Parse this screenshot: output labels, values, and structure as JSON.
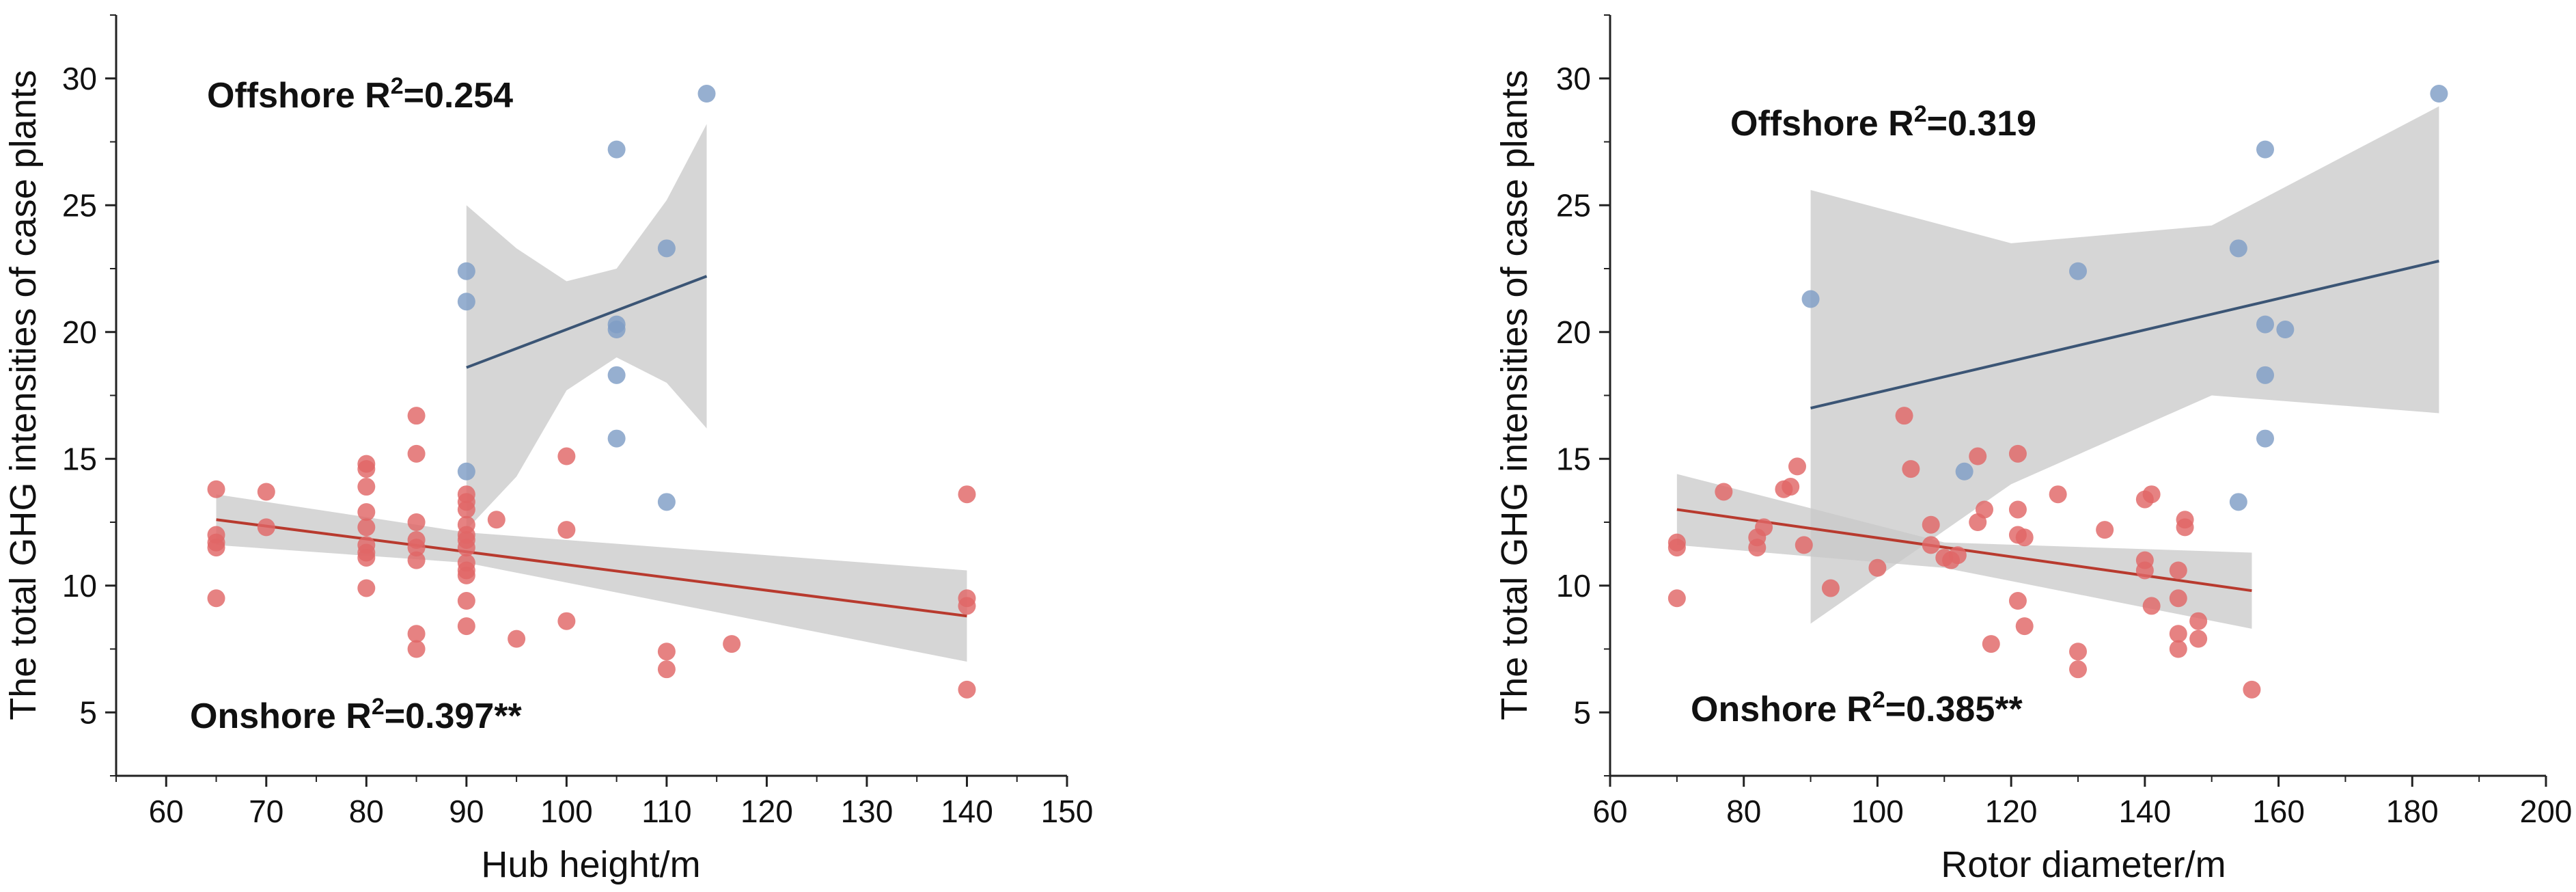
{
  "chart_data": [
    {
      "type": "scatter",
      "id": "hub",
      "xlabel": "Hub height/m",
      "ylabel": "The total GHG intensities of case plants",
      "xlim": [
        55,
        150
      ],
      "ylim": [
        2.5,
        32.5
      ],
      "xticks": [
        60,
        70,
        80,
        90,
        100,
        110,
        120,
        130,
        140,
        150
      ],
      "yticks": [
        5,
        10,
        15,
        20,
        25,
        30
      ],
      "series": [
        {
          "name": "Onshore",
          "color": "#e06666",
          "points": [
            [
              65,
              13.8
            ],
            [
              65,
              12.0
            ],
            [
              65,
              11.7
            ],
            [
              65,
              11.5
            ],
            [
              65,
              9.5
            ],
            [
              70,
              13.7
            ],
            [
              70,
              12.3
            ],
            [
              80,
              14.8
            ],
            [
              80,
              14.6
            ],
            [
              80,
              13.9
            ],
            [
              80,
              12.9
            ],
            [
              80,
              12.3
            ],
            [
              80,
              11.6
            ],
            [
              80,
              11.3
            ],
            [
              80,
              11.1
            ],
            [
              80,
              9.9
            ],
            [
              85,
              16.7
            ],
            [
              85,
              15.2
            ],
            [
              85,
              12.5
            ],
            [
              85,
              11.8
            ],
            [
              85,
              11.5
            ],
            [
              85,
              11.0
            ],
            [
              85,
              8.1
            ],
            [
              85,
              7.5
            ],
            [
              90,
              13.6
            ],
            [
              90,
              13.3
            ],
            [
              90,
              13.0
            ],
            [
              90,
              12.4
            ],
            [
              90,
              12.0
            ],
            [
              90,
              11.8
            ],
            [
              90,
              11.5
            ],
            [
              90,
              10.9
            ],
            [
              90,
              10.6
            ],
            [
              90,
              10.4
            ],
            [
              90,
              9.4
            ],
            [
              90,
              8.4
            ],
            [
              93,
              12.6
            ],
            [
              95,
              7.9
            ],
            [
              100,
              15.1
            ],
            [
              100,
              12.2
            ],
            [
              100,
              8.6
            ],
            [
              110,
              7.4
            ],
            [
              110,
              6.7
            ],
            [
              116.5,
              7.7
            ],
            [
              140,
              13.6
            ],
            [
              140,
              9.5
            ],
            [
              140,
              9.2
            ],
            [
              140,
              5.9
            ]
          ],
          "fit_x": [
            65,
            140
          ],
          "fit_y": [
            12.6,
            8.8
          ],
          "band_x": [
            65,
            90,
            140
          ],
          "band_upper": [
            13.6,
            12.1,
            10.6
          ],
          "band_lower": [
            11.6,
            10.9,
            7.0
          ],
          "annotation": {
            "prefix": "Onshore R",
            "sup": "2",
            "suffix": "=0.397**"
          }
        },
        {
          "name": "Offshore",
          "color": "#7f9dc6",
          "points": [
            [
              90,
              22.4
            ],
            [
              90,
              21.2
            ],
            [
              90,
              14.5
            ],
            [
              105,
              27.2
            ],
            [
              105,
              20.3
            ],
            [
              105,
              20.1
            ],
            [
              105,
              18.3
            ],
            [
              105,
              15.8
            ],
            [
              110,
              23.3
            ],
            [
              110,
              13.3
            ],
            [
              114,
              29.4
            ]
          ],
          "fit_x": [
            90,
            114
          ],
          "fit_y": [
            18.6,
            22.2
          ],
          "band_x": [
            90,
            95,
            100,
            105,
            110,
            114
          ],
          "band_upper": [
            25.0,
            23.3,
            22.0,
            22.5,
            25.2,
            28.2
          ],
          "band_lower": [
            12.2,
            14.3,
            17.7,
            19.0,
            18.0,
            16.2
          ],
          "annotation": {
            "prefix": "Offshore R",
            "sup": "2",
            "suffix": "=0.254"
          }
        }
      ]
    },
    {
      "type": "scatter",
      "id": "rotor",
      "xlabel": "Rotor diameter/m",
      "ylabel": "The total GHG intensities of case plants",
      "xlim": [
        60,
        200
      ],
      "ylim": [
        2.5,
        32.5
      ],
      "xticks": [
        60,
        80,
        100,
        120,
        140,
        160,
        180,
        200
      ],
      "yticks": [
        5,
        10,
        15,
        20,
        25,
        30
      ],
      "series": [
        {
          "name": "Onshore",
          "color": "#e06666",
          "points": [
            [
              70,
              11.7
            ],
            [
              70,
              11.5
            ],
            [
              70,
              9.5
            ],
            [
              77,
              13.7
            ],
            [
              82,
              11.9
            ],
            [
              82,
              11.5
            ],
            [
              83,
              12.3
            ],
            [
              86,
              13.8
            ],
            [
              87,
              13.9
            ],
            [
              88,
              14.7
            ],
            [
              89,
              11.6
            ],
            [
              93,
              9.9
            ],
            [
              100,
              10.7
            ],
            [
              104,
              16.7
            ],
            [
              105,
              14.6
            ],
            [
              108,
              12.4
            ],
            [
              108,
              11.6
            ],
            [
              110,
              11.1
            ],
            [
              111,
              11.0
            ],
            [
              112,
              11.2
            ],
            [
              115,
              15.1
            ],
            [
              115,
              12.5
            ],
            [
              116,
              13.0
            ],
            [
              117,
              7.7
            ],
            [
              121,
              15.2
            ],
            [
              121,
              13.0
            ],
            [
              121,
              12.0
            ],
            [
              121,
              9.4
            ],
            [
              122,
              11.9
            ],
            [
              122,
              8.4
            ],
            [
              127,
              13.6
            ],
            [
              130,
              7.4
            ],
            [
              130,
              6.7
            ],
            [
              134,
              12.2
            ],
            [
              140,
              13.4
            ],
            [
              140,
              11.0
            ],
            [
              140,
              10.6
            ],
            [
              141,
              13.6
            ],
            [
              141,
              9.2
            ],
            [
              145,
              10.6
            ],
            [
              145,
              9.5
            ],
            [
              145,
              8.1
            ],
            [
              145,
              7.5
            ],
            [
              146,
              12.6
            ],
            [
              146,
              12.3
            ],
            [
              148,
              8.6
            ],
            [
              148,
              7.9
            ],
            [
              156,
              5.9
            ]
          ],
          "fit_x": [
            70,
            156
          ],
          "fit_y": [
            13.0,
            9.8
          ],
          "band_x": [
            70,
            110,
            156
          ],
          "band_upper": [
            14.4,
            11.7,
            11.3
          ],
          "band_lower": [
            11.6,
            10.7,
            8.3
          ],
          "annotation": {
            "prefix": "Onshore R",
            "sup": "2",
            "suffix": "=0.385**"
          }
        },
        {
          "name": "Offshore",
          "color": "#7f9dc6",
          "points": [
            [
              90,
              21.3
            ],
            [
              113,
              14.5
            ],
            [
              130,
              22.4
            ],
            [
              154,
              23.3
            ],
            [
              154,
              13.3
            ],
            [
              158,
              27.2
            ],
            [
              158,
              20.3
            ],
            [
              158,
              18.3
            ],
            [
              158,
              15.8
            ],
            [
              161,
              20.1
            ],
            [
              184,
              29.4
            ]
          ],
          "fit_x": [
            90,
            184
          ],
          "fit_y": [
            17.0,
            22.8
          ],
          "band_x": [
            90,
            120,
            150,
            184
          ],
          "band_upper": [
            25.6,
            23.5,
            24.2,
            28.9
          ],
          "band_lower": [
            8.5,
            14.0,
            17.5,
            16.8
          ],
          "annotation": {
            "prefix": "Offshore R",
            "sup": "2",
            "suffix": "=0.319"
          }
        }
      ]
    }
  ]
}
